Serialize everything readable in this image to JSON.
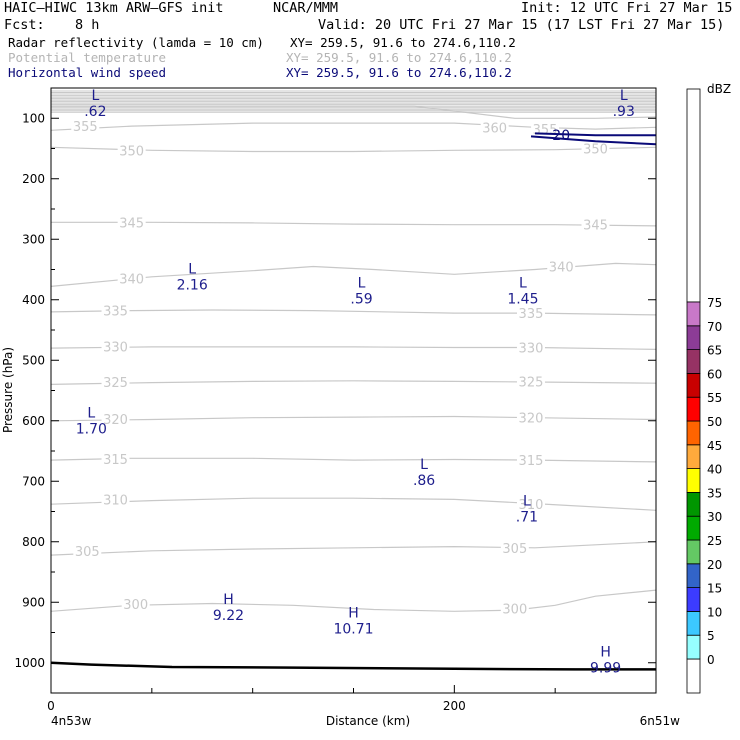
{
  "header": {
    "model": "HAIC–HIWC 13km ARW–GFS init",
    "org": "NCAR/MMM",
    "init": "Init: 12 UTC Fri 27 Mar 15",
    "fcst_label": "Fcst:",
    "fcst_value": "8 h",
    "valid": "Valid: 20 UTC Fri 27 Mar 15 (17 LST Fri 27 Mar 15)"
  },
  "fields": [
    {
      "name": "Radar reflectivity (lamda = 10 cm)",
      "xy": "XY= 259.5, 91.6 to 274.6,110.2",
      "color": "#000000"
    },
    {
      "name": "Potential temperature",
      "xy": "XY= 259.5, 91.6 to 274.6,110.2",
      "color": "#b4b4b4"
    },
    {
      "name": "Horizontal wind speed",
      "xy": "XY= 259.5, 91.6 to 274.6,110.2",
      "color": "#0a0a78"
    }
  ],
  "colorbar": {
    "unit": "dBZ",
    "levels": [
      "0",
      "5",
      "10",
      "15",
      "20",
      "25",
      "30",
      "35",
      "40",
      "45",
      "50",
      "55",
      "60",
      "65",
      "70",
      "75"
    ],
    "colors": [
      "#ffffff",
      "#96ffff",
      "#3cc8ff",
      "#3c3cff",
      "#3264c8",
      "#64c864",
      "#00aa00",
      "#009600",
      "#ffff00",
      "#ffaa3c",
      "#ff6400",
      "#ff0000",
      "#c80000",
      "#963264",
      "#8c3c96",
      "#c878c8"
    ],
    "top_color": "#ffffff"
  },
  "axes": {
    "ylabel": "Pressure (hPa)",
    "xlabel": "Distance (km)",
    "yticks": [
      "100",
      "200",
      "300",
      "400",
      "500",
      "600",
      "700",
      "800",
      "900",
      "1000"
    ],
    "xticks": [
      "0",
      "200"
    ],
    "left_end_label": "4n53w",
    "right_end_label": "6n51w"
  },
  "chart_data": {
    "type": "contour",
    "x_range_km": [
      0,
      300
    ],
    "y_range_hpa": [
      1050,
      50
    ],
    "theta_contours": [
      {
        "label": "300",
        "points": [
          [
            0,
            915
          ],
          [
            40,
            905
          ],
          [
            80,
            902
          ],
          [
            120,
            905
          ],
          [
            160,
            912
          ],
          [
            200,
            915
          ],
          [
            230,
            913
          ],
          [
            250,
            905
          ],
          [
            270,
            890
          ],
          [
            300,
            880
          ]
        ],
        "labels_at": [
          [
            42,
            903
          ],
          [
            230,
            910
          ]
        ]
      },
      {
        "label": "305",
        "points": [
          [
            0,
            822
          ],
          [
            50,
            815
          ],
          [
            100,
            812
          ],
          [
            150,
            810
          ],
          [
            200,
            808
          ],
          [
            240,
            810
          ],
          [
            270,
            805
          ],
          [
            300,
            800
          ]
        ],
        "labels_at": [
          [
            18,
            815
          ],
          [
            230,
            810
          ]
        ]
      },
      {
        "label": "310",
        "points": [
          [
            0,
            738
          ],
          [
            50,
            732
          ],
          [
            100,
            728
          ],
          [
            150,
            728
          ],
          [
            200,
            730
          ],
          [
            240,
            737
          ],
          [
            300,
            748
          ]
        ],
        "labels_at": [
          [
            32,
            730
          ],
          [
            238,
            738
          ]
        ]
      },
      {
        "label": "315",
        "points": [
          [
            0,
            665
          ],
          [
            40,
            662
          ],
          [
            100,
            662
          ],
          [
            150,
            665
          ],
          [
            200,
            664
          ],
          [
            240,
            665
          ],
          [
            300,
            668
          ]
        ],
        "labels_at": [
          [
            32,
            663
          ],
          [
            238,
            665
          ]
        ]
      },
      {
        "label": "320",
        "points": [
          [
            0,
            600
          ],
          [
            50,
            598
          ],
          [
            100,
            595
          ],
          [
            150,
            594
          ],
          [
            200,
            593
          ],
          [
            240,
            595
          ],
          [
            300,
            598
          ]
        ],
        "labels_at": [
          [
            32,
            597
          ],
          [
            238,
            595
          ]
        ]
      },
      {
        "label": "325",
        "points": [
          [
            0,
            540
          ],
          [
            50,
            537
          ],
          [
            100,
            535
          ],
          [
            150,
            534
          ],
          [
            200,
            535
          ],
          [
            240,
            536
          ],
          [
            300,
            538
          ]
        ],
        "labels_at": [
          [
            32,
            536
          ],
          [
            238,
            535
          ]
        ]
      },
      {
        "label": "330",
        "points": [
          [
            0,
            480
          ],
          [
            50,
            478
          ],
          [
            100,
            478
          ],
          [
            150,
            478
          ],
          [
            200,
            479
          ],
          [
            240,
            479
          ],
          [
            300,
            482
          ]
        ],
        "labels_at": [
          [
            32,
            477
          ],
          [
            238,
            479
          ]
        ]
      },
      {
        "label": "335",
        "points": [
          [
            0,
            420
          ],
          [
            40,
            418
          ],
          [
            80,
            417
          ],
          [
            130,
            418
          ],
          [
            200,
            422
          ],
          [
            240,
            422
          ],
          [
            300,
            425
          ]
        ],
        "labels_at": [
          [
            32,
            418
          ],
          [
            238,
            422
          ]
        ]
      },
      {
        "label": "340",
        "points": [
          [
            0,
            378
          ],
          [
            50,
            362
          ],
          [
            100,
            352
          ],
          [
            130,
            345
          ],
          [
            160,
            350
          ],
          [
            200,
            358
          ],
          [
            240,
            350
          ],
          [
            280,
            340
          ],
          [
            300,
            342
          ]
        ],
        "labels_at": [
          [
            40,
            365
          ],
          [
            253,
            345
          ]
        ]
      },
      {
        "label": "345",
        "points": [
          [
            0,
            272
          ],
          [
            50,
            272
          ],
          [
            100,
            273
          ],
          [
            150,
            275
          ],
          [
            200,
            276
          ],
          [
            250,
            276
          ],
          [
            300,
            278
          ]
        ],
        "labels_at": [
          [
            40,
            272
          ],
          [
            270,
            276
          ]
        ]
      },
      {
        "label": "350",
        "points": [
          [
            0,
            148
          ],
          [
            50,
            153
          ],
          [
            100,
            155
          ],
          [
            150,
            155
          ],
          [
            200,
            153
          ],
          [
            250,
            152
          ],
          [
            300,
            148
          ]
        ],
        "labels_at": [
          [
            40,
            153
          ],
          [
            270,
            150
          ]
        ]
      },
      {
        "label": "355",
        "points": [
          [
            0,
            120
          ],
          [
            40,
            113
          ],
          [
            100,
            108
          ],
          [
            150,
            108
          ],
          [
            200,
            108
          ],
          [
            240,
            115
          ],
          [
            270,
            118
          ],
          [
            300,
            115
          ]
        ],
        "labels_at": [
          [
            17,
            113
          ],
          [
            245,
            118
          ]
        ]
      },
      {
        "label": "360",
        "points": [
          [
            0,
            80
          ],
          [
            60,
            80
          ],
          [
            120,
            80
          ],
          [
            180,
            80
          ],
          [
            230,
            100
          ],
          [
            270,
            100
          ],
          [
            300,
            98
          ]
        ],
        "labels_at": [
          [
            220,
            115
          ]
        ]
      }
    ],
    "wind_contours": [
      {
        "label": "20",
        "points": [
          [
            240,
            125
          ],
          [
            270,
            128
          ],
          [
            300,
            128
          ]
        ]
      },
      {
        "label": "",
        "points": [
          [
            238,
            130
          ],
          [
            270,
            138
          ],
          [
            300,
            143
          ]
        ]
      }
    ],
    "ground_pressure": [
      [
        0,
        1000
      ],
      [
        20,
        1003
      ],
      [
        60,
        1007
      ],
      [
        120,
        1008
      ],
      [
        200,
        1010
      ],
      [
        260,
        1011
      ],
      [
        300,
        1011
      ]
    ],
    "extrema": [
      {
        "type": "L",
        "value": ".62",
        "x": 22,
        "y": 70
      },
      {
        "type": "L",
        "value": ".93",
        "x": 284,
        "y": 70
      },
      {
        "type": "L",
        "value": "2.16",
        "x": 70,
        "y": 357
      },
      {
        "type": "L",
        "value": ".59",
        "x": 154,
        "y": 380
      },
      {
        "type": "L",
        "value": "1.45",
        "x": 234,
        "y": 380
      },
      {
        "type": "L",
        "value": "1.70",
        "x": 20,
        "y": 595
      },
      {
        "type": "L",
        "value": ".86",
        "x": 185,
        "y": 680
      },
      {
        "type": "L",
        "value": ".71",
        "x": 236,
        "y": 740
      },
      {
        "type": "H",
        "value": "9.22",
        "x": 88,
        "y": 903
      },
      {
        "type": "H",
        "value": "10.71",
        "x": 150,
        "y": 925
      },
      {
        "type": "H",
        "value": "9.99",
        "x": 275,
        "y": 990
      }
    ]
  }
}
